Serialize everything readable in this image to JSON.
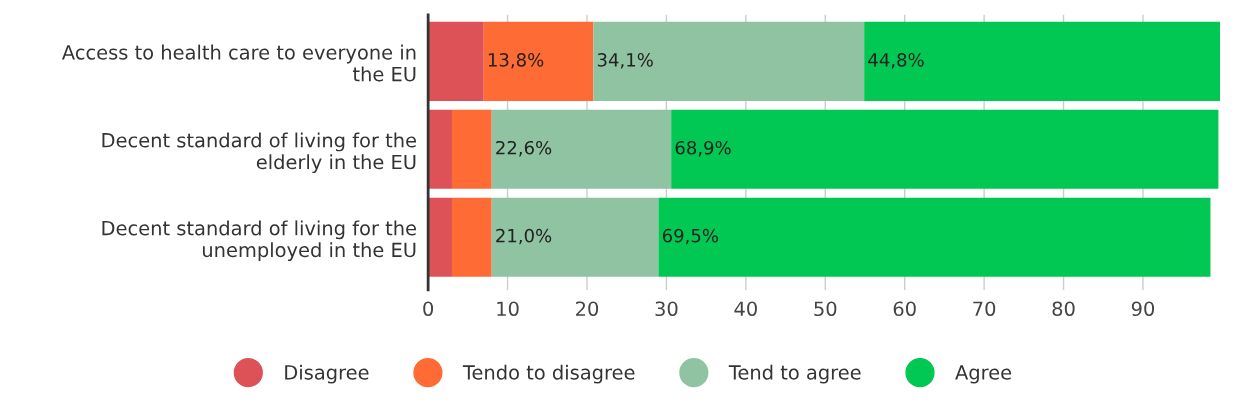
{
  "chart_data": {
    "type": "bar",
    "orientation": "horizontal",
    "stacked": true,
    "categories": [
      "Access to health care to everyone in\nthe EU",
      "Decent standard of living for the\nelderly in the EU",
      "Decent standard of living for the\nunemployed in the EU"
    ],
    "series": [
      {
        "name": "Disagree",
        "color": "#dd5257",
        "values": [
          7.0,
          3.0,
          3.0
        ],
        "value_labels": [
          null,
          null,
          null
        ]
      },
      {
        "name": "Tendo to disagree",
        "color": "#ff6b35",
        "values": [
          13.8,
          5.0,
          5.0
        ],
        "value_labels": [
          "13,8%",
          null,
          null
        ]
      },
      {
        "name": "Tend to agree",
        "color": "#8fc3a1",
        "values": [
          34.1,
          22.6,
          21.0
        ],
        "value_labels": [
          "34,1%",
          "22,6%",
          "21,0%"
        ]
      },
      {
        "name": "Agree",
        "color": "#00c853",
        "values": [
          44.8,
          68.9,
          69.5
        ],
        "value_labels": [
          "44,8%",
          "68,9%",
          "69,5%"
        ]
      }
    ],
    "xlim": [
      0,
      100
    ],
    "xticks": [
      0,
      10,
      20,
      30,
      40,
      50,
      60,
      70,
      80,
      90
    ],
    "grid": "x",
    "legend": "bottom",
    "marker": "circle"
  }
}
